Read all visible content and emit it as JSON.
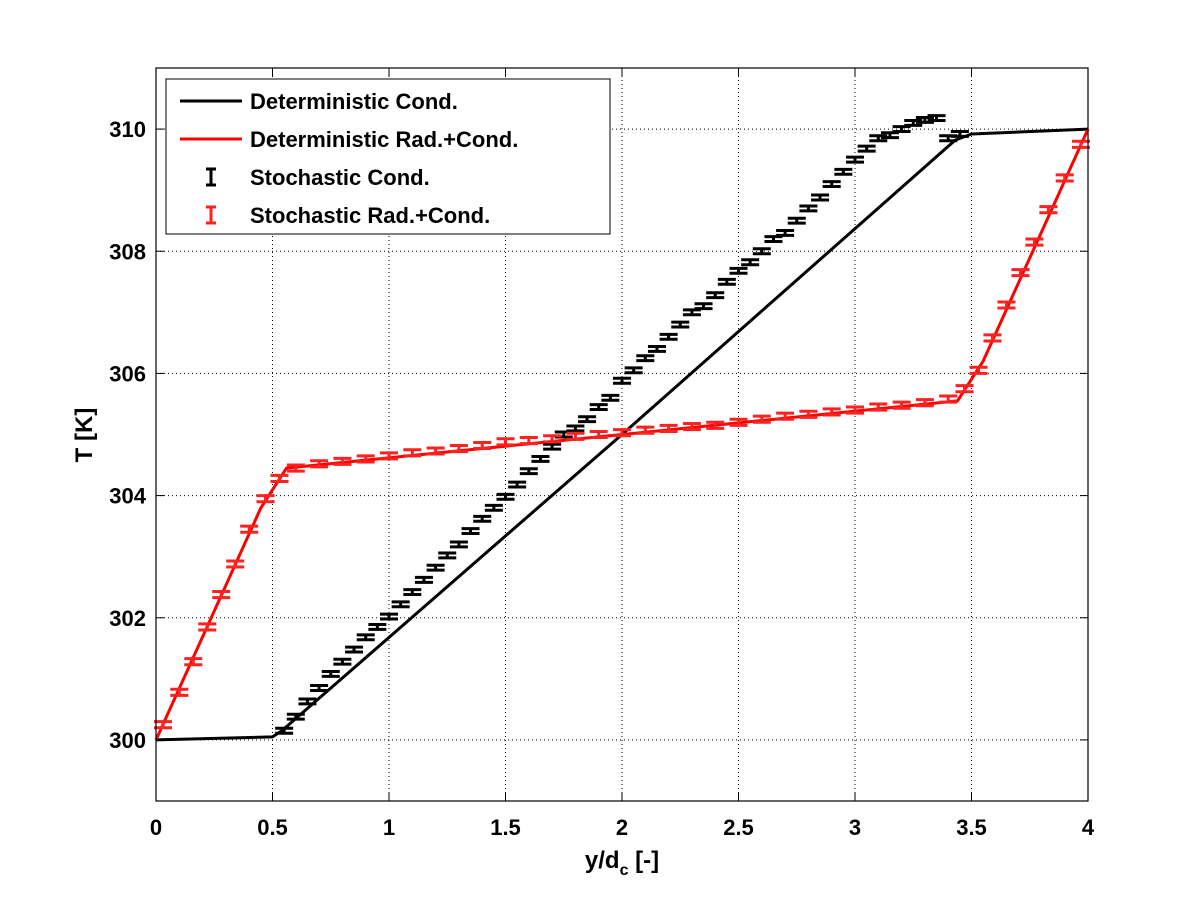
{
  "chart_data": {
    "type": "line",
    "title": "",
    "xlabel": "y/d",
    "xlabel_sub": "c",
    "xlabel_suffix": " [-]",
    "ylabel": "T [K]",
    "xlim": [
      0,
      4
    ],
    "ylim": [
      299,
      311
    ],
    "xticks": [
      0,
      0.5,
      1,
      1.5,
      2,
      2.5,
      3,
      3.5,
      4
    ],
    "xtick_labels": [
      "0",
      "0.5",
      "1",
      "1.5",
      "2",
      "2.5",
      "3",
      "3.5",
      "4"
    ],
    "yticks": [
      300,
      302,
      304,
      306,
      308,
      310
    ],
    "ytick_labels": [
      "300",
      "302",
      "304",
      "306",
      "308",
      "310"
    ],
    "grid": true,
    "legend_position": "top-left",
    "legend": [
      "Deterministic Cond.",
      "Deterministic Rad.+Cond.",
      "Stochastic Cond.",
      "Stochastic Rad.+Cond."
    ],
    "colors": {
      "cond": "#000000",
      "rad": "#ff0000",
      "rad_err": "#ff2020"
    },
    "series": [
      {
        "name": "Deterministic Cond.",
        "kind": "line",
        "x": [
          0,
          0.5,
          0.54,
          2.0,
          3.43,
          3.5,
          4.0
        ],
        "y": [
          300.0,
          300.05,
          300.15,
          305.0,
          309.82,
          309.92,
          310.0
        ]
      },
      {
        "name": "Deterministic Rad.+Cond.",
        "kind": "line",
        "x": [
          0,
          0.45,
          0.56,
          2.0,
          3.44,
          3.55,
          4.0
        ],
        "y": [
          300.0,
          303.8,
          304.45,
          305.0,
          305.55,
          306.2,
          310.0
        ]
      },
      {
        "name": "Stochastic Cond.",
        "kind": "errorbar",
        "x": [
          0.55,
          0.6,
          0.65,
          0.7,
          0.75,
          0.8,
          0.85,
          0.9,
          0.95,
          1.0,
          1.05,
          1.1,
          1.15,
          1.2,
          1.25,
          1.3,
          1.35,
          1.4,
          1.45,
          1.5,
          1.55,
          1.6,
          1.65,
          1.7,
          1.75,
          1.8,
          1.85,
          1.9,
          1.95,
          2.0,
          2.05,
          2.1,
          2.15,
          2.2,
          2.25,
          2.3,
          2.35,
          2.4,
          2.45,
          2.5,
          2.55,
          2.6,
          2.65,
          2.7,
          2.75,
          2.8,
          2.85,
          2.9,
          2.95,
          3.0,
          3.05,
          3.1,
          3.15,
          3.2,
          3.25,
          3.3,
          3.35,
          3.4,
          3.45
        ],
        "y": [
          300.15,
          300.38,
          300.63,
          300.85,
          301.08,
          301.28,
          301.48,
          301.68,
          301.85,
          302.02,
          302.22,
          302.42,
          302.62,
          302.82,
          303.02,
          303.2,
          303.42,
          303.62,
          303.8,
          303.98,
          304.18,
          304.4,
          304.6,
          304.8,
          305.0,
          305.1,
          305.25,
          305.45,
          305.6,
          305.88,
          306.05,
          306.25,
          306.4,
          306.6,
          306.8,
          307.0,
          307.1,
          307.28,
          307.5,
          307.68,
          307.82,
          308.0,
          308.2,
          308.3,
          308.5,
          308.7,
          308.88,
          309.1,
          309.3,
          309.5,
          309.68,
          309.85,
          309.9,
          310.0,
          310.1,
          310.15,
          310.18,
          309.85,
          309.92
        ],
        "err": [
          0.04,
          0.04,
          0.04,
          0.04,
          0.04,
          0.04,
          0.04,
          0.04,
          0.04,
          0.04,
          0.04,
          0.04,
          0.04,
          0.04,
          0.04,
          0.04,
          0.04,
          0.04,
          0.04,
          0.04,
          0.04,
          0.04,
          0.04,
          0.04,
          0.04,
          0.04,
          0.04,
          0.04,
          0.04,
          0.04,
          0.04,
          0.04,
          0.04,
          0.04,
          0.04,
          0.04,
          0.04,
          0.04,
          0.04,
          0.04,
          0.04,
          0.04,
          0.04,
          0.04,
          0.04,
          0.04,
          0.04,
          0.04,
          0.04,
          0.04,
          0.04,
          0.04,
          0.04,
          0.04,
          0.04,
          0.04,
          0.04,
          0.04,
          0.04
        ]
      },
      {
        "name": "Stochastic Rad.+Cond.",
        "kind": "errorbar",
        "x": [
          0.03,
          0.1,
          0.16,
          0.22,
          0.28,
          0.34,
          0.4,
          0.47,
          0.53,
          0.6,
          0.7,
          0.8,
          0.9,
          1.0,
          1.1,
          1.2,
          1.3,
          1.4,
          1.5,
          1.6,
          1.7,
          1.8,
          1.9,
          2.0,
          2.1,
          2.2,
          2.3,
          2.4,
          2.5,
          2.6,
          2.7,
          2.8,
          2.9,
          3.0,
          3.1,
          3.2,
          3.3,
          3.4,
          3.47,
          3.53,
          3.59,
          3.65,
          3.71,
          3.77,
          3.83,
          3.9,
          3.97
        ],
        "y": [
          300.25,
          300.78,
          301.28,
          301.85,
          302.38,
          302.88,
          303.45,
          303.95,
          304.28,
          304.45,
          304.52,
          304.56,
          304.6,
          304.65,
          304.7,
          304.73,
          304.77,
          304.82,
          304.88,
          304.9,
          304.93,
          304.97,
          305.0,
          305.03,
          305.07,
          305.1,
          305.13,
          305.15,
          305.2,
          305.25,
          305.3,
          305.33,
          305.37,
          305.4,
          305.45,
          305.48,
          305.52,
          305.58,
          305.75,
          306.05,
          306.58,
          307.12,
          307.65,
          308.15,
          308.68,
          309.2,
          309.75
        ],
        "err": [
          0.05,
          0.05,
          0.05,
          0.05,
          0.05,
          0.05,
          0.05,
          0.05,
          0.05,
          0.05,
          0.05,
          0.05,
          0.05,
          0.05,
          0.05,
          0.05,
          0.05,
          0.05,
          0.05,
          0.05,
          0.05,
          0.05,
          0.05,
          0.05,
          0.05,
          0.05,
          0.05,
          0.05,
          0.05,
          0.05,
          0.05,
          0.05,
          0.05,
          0.05,
          0.05,
          0.05,
          0.05,
          0.05,
          0.05,
          0.05,
          0.05,
          0.05,
          0.05,
          0.05,
          0.05,
          0.05,
          0.05
        ]
      }
    ]
  }
}
